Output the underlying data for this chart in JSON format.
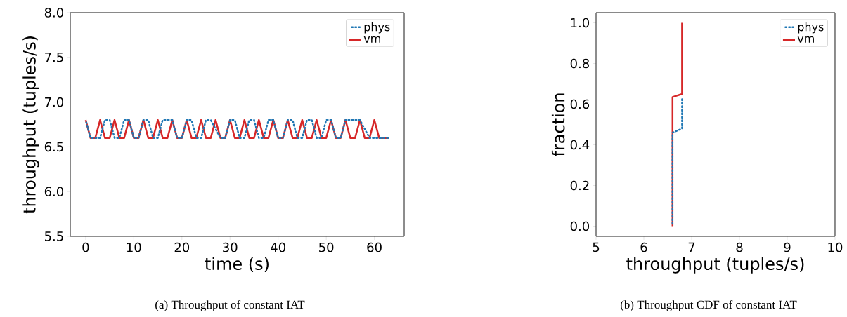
{
  "chart_data": [
    {
      "type": "line",
      "xlabel": "time (s)",
      "ylabel": "throughput (tuples/s)",
      "annotations": [
        "(a) Throughput of constant IAT"
      ],
      "xlim": [
        -3.2,
        66.2
      ],
      "ylim": [
        5.5,
        8.0
      ],
      "xticks": [
        0,
        10,
        20,
        30,
        40,
        50,
        60
      ],
      "yticks": [
        5.5,
        {
          "value": 6.0,
          "label": "6.0"
        },
        6.5,
        {
          "value": 7.0,
          "label": "7.0"
        },
        7.5,
        {
          "value": 8.0,
          "label": "8.0"
        }
      ],
      "legend": "top right",
      "marker": "none",
      "x": [
        0,
        1,
        2,
        3,
        4,
        5,
        6,
        7,
        8,
        9,
        10,
        11,
        12,
        13,
        14,
        15,
        16,
        17,
        18,
        19,
        20,
        21,
        22,
        23,
        24,
        25,
        26,
        27,
        28,
        29,
        30,
        31,
        32,
        33,
        34,
        35,
        36,
        37,
        38,
        39,
        40,
        41,
        42,
        43,
        44,
        45,
        46,
        47,
        48,
        49,
        50,
        51,
        52,
        53,
        54,
        55,
        56,
        57,
        58,
        59,
        60,
        61,
        62,
        63
      ],
      "series": [
        {
          "name": "phys",
          "color": "#1f77b4",
          "line_style": "dotted",
          "values": [
            6.8,
            6.6,
            6.6,
            6.6,
            6.8,
            6.8,
            6.6,
            6.6,
            6.8,
            6.8,
            6.6,
            6.6,
            6.8,
            6.8,
            6.6,
            6.6,
            6.8,
            6.8,
            6.8,
            6.6,
            6.6,
            6.8,
            6.8,
            6.6,
            6.6,
            6.8,
            6.8,
            6.7,
            6.6,
            6.6,
            6.8,
            6.8,
            6.6,
            6.6,
            6.8,
            6.8,
            6.6,
            6.6,
            6.8,
            6.8,
            6.6,
            6.6,
            6.8,
            6.8,
            6.6,
            6.6,
            6.8,
            6.8,
            6.6,
            6.6,
            6.8,
            6.8,
            6.6,
            6.6,
            6.8,
            6.8,
            6.8,
            6.8,
            6.7,
            6.6,
            6.6,
            6.6,
            6.6,
            6.6
          ]
        },
        {
          "name": "vm",
          "color": "#d62728",
          "line_style": "solid",
          "values": [
            6.8,
            6.6,
            6.6,
            6.8,
            6.6,
            6.6,
            6.8,
            6.6,
            6.6,
            6.8,
            6.6,
            6.6,
            6.8,
            6.6,
            6.6,
            6.8,
            6.6,
            6.6,
            6.8,
            6.6,
            6.6,
            6.8,
            6.6,
            6.6,
            6.8,
            6.6,
            6.6,
            6.8,
            6.6,
            6.6,
            6.8,
            6.6,
            6.6,
            6.8,
            6.6,
            6.6,
            6.8,
            6.6,
            6.6,
            6.8,
            6.6,
            6.6,
            6.8,
            6.6,
            6.6,
            6.8,
            6.6,
            6.6,
            6.8,
            6.6,
            6.6,
            6.8,
            6.6,
            6.6,
            6.8,
            6.6,
            6.6,
            6.8,
            6.6,
            6.6,
            6.8,
            6.6,
            6.6,
            6.6
          ]
        }
      ]
    },
    {
      "type": "line",
      "xlabel": "throughput (tuples/s)",
      "ylabel": "fraction",
      "annotations": [
        "(b) Throughput CDF of constant IAT"
      ],
      "xlim": [
        5,
        10
      ],
      "ylim": [
        -0.05,
        1.05
      ],
      "xticks": [
        5,
        6,
        7,
        8,
        9,
        10
      ],
      "yticks": [
        {
          "value": 0,
          "label": "0.0"
        },
        0.2,
        0.4,
        0.6,
        0.8,
        {
          "value": 1,
          "label": "1.0"
        }
      ],
      "legend": "top right",
      "marker": "none",
      "series": [
        {
          "name": "phys",
          "color": "#1f77b4",
          "line_style": "dotted",
          "x": [
            6.6,
            6.6,
            6.7,
            6.8,
            6.8
          ],
          "values": [
            0,
            0.46,
            0.47,
            0.48,
            0.63
          ]
        },
        {
          "name": "vm",
          "color": "#d62728",
          "line_style": "solid",
          "x": [
            6.6,
            6.6,
            6.8,
            6.8
          ],
          "values": [
            0,
            0.635,
            0.65,
            1.0
          ]
        }
      ]
    }
  ]
}
